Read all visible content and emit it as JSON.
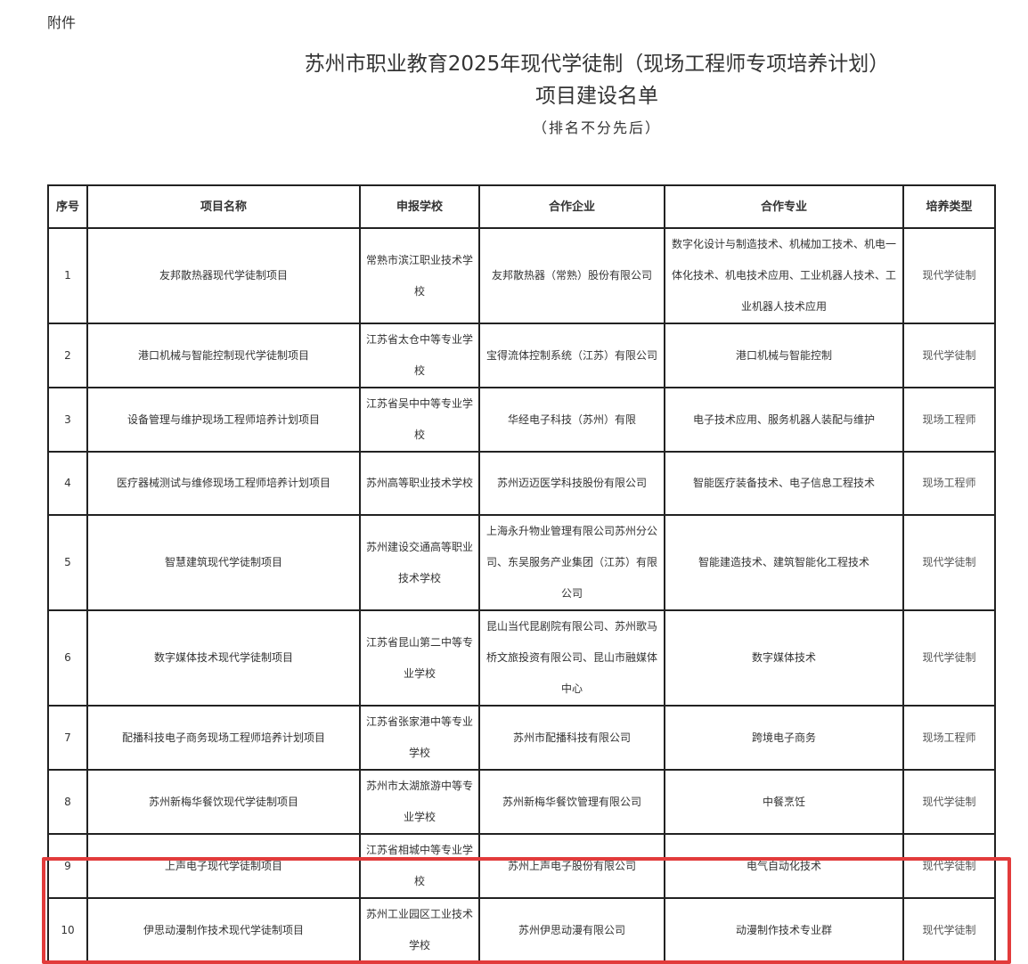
{
  "attachment_label": "附件",
  "title_line1": "苏州市职业教育2025年现代学徒制（现场工程师专项培养计划）",
  "title_line2": "项目建设名单",
  "note": "（排名不分先后）",
  "table": {
    "headers": [
      "序号",
      "项目名称",
      "申报学校",
      "合作企业",
      "合作专业",
      "培养类型"
    ],
    "rows": [
      {
        "no": "1",
        "project": "友邦散热器现代学徒制项目",
        "school": "常熟市滨江职业技术学校",
        "company": "友邦散热器（常熟）股份有限公司",
        "major": "数字化设计与制造技术、机械加工技术、机电一体化技术、机电技术应用、工业机器人技术、工业机器人技术应用",
        "type": "现代学徒制"
      },
      {
        "no": "2",
        "project": "港口机械与智能控制现代学徒制项目",
        "school": "江苏省太仓中等专业学校",
        "company": "宝得流体控制系统（江苏）有限公司",
        "major": "港口机械与智能控制",
        "type": "现代学徒制"
      },
      {
        "no": "3",
        "project": "设备管理与维护现场工程师培养计划项目",
        "school": "江苏省吴中中等专业学校",
        "company": "华经电子科技（苏州）有限",
        "major": "电子技术应用、服务机器人装配与维护",
        "type": "现场工程师"
      },
      {
        "no": "4",
        "project": "医疗器械测试与维修现场工程师培养计划项目",
        "school": "苏州高等职业技术学校",
        "company": "苏州迈迈医学科技股份有限公司",
        "major": "智能医疗装备技术、电子信息工程技术",
        "type": "现场工程师"
      },
      {
        "no": "5",
        "project": "智慧建筑现代学徒制项目",
        "school": "苏州建设交通高等职业技术学校",
        "company": "上海永升物业管理有限公司苏州分公司、东吴服务产业集团（江苏）有限公司",
        "major": "智能建造技术、建筑智能化工程技术",
        "type": "现代学徒制"
      },
      {
        "no": "6",
        "project": "数字媒体技术现代学徒制项目",
        "school": "江苏省昆山第二中等专业学校",
        "company": "昆山当代昆剧院有限公司、苏州歌马桥文旅投资有限公司、昆山市融媒体中心",
        "major": "数字媒体技术",
        "type": "现代学徒制"
      },
      {
        "no": "7",
        "project": "配播科技电子商务现场工程师培养计划项目",
        "school": "江苏省张家港中等专业学校",
        "company": "苏州市配播科技有限公司",
        "major": "跨境电子商务",
        "type": "现场工程师"
      },
      {
        "no": "8",
        "project": "苏州新梅华餐饮现代学徒制项目",
        "school": "苏州市太湖旅游中等专业学校",
        "company": "苏州新梅华餐饮管理有限公司",
        "major": "中餐烹饪",
        "type": "现代学徒制"
      },
      {
        "no": "9",
        "project": "上声电子现代学徒制项目",
        "school": "江苏省相城中等专业学校",
        "company": "苏州上声电子股份有限公司",
        "major": "电气自动化技术",
        "type": "现代学徒制"
      },
      {
        "no": "10",
        "project": "伊思动漫制作技术现代学徒制项目",
        "school": "苏州工业园区工业技术学校",
        "company": "苏州伊思动漫有限公司",
        "major": "动漫制作技术专业群",
        "type": "现代学徒制"
      }
    ]
  },
  "highlight_color": "#e23b3b"
}
